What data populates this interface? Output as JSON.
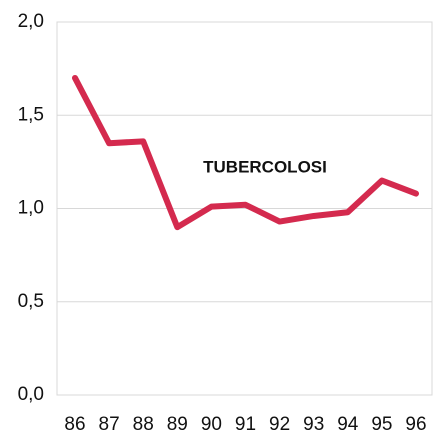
{
  "chart_data": {
    "type": "line",
    "annotation": "TUBERCOLOSI",
    "categories": [
      "86",
      "87",
      "88",
      "89",
      "90",
      "91",
      "92",
      "93",
      "94",
      "95",
      "96"
    ],
    "series": [
      {
        "name": "TUBERCOLOSI",
        "color": "#d42a4e",
        "values": [
          1.7,
          1.35,
          1.36,
          0.9,
          1.01,
          1.02,
          0.93,
          0.96,
          0.98,
          1.15,
          1.08
        ]
      }
    ],
    "ylim": [
      0,
      2
    ],
    "yticks": [
      {
        "value": 0,
        "label": "0,0"
      },
      {
        "value": 0.5,
        "label": "0,5"
      },
      {
        "value": 1,
        "label": "1,0"
      },
      {
        "value": 1.5,
        "label": "1,5"
      },
      {
        "value": 2,
        "label": "2,0"
      }
    ],
    "grid": true
  }
}
